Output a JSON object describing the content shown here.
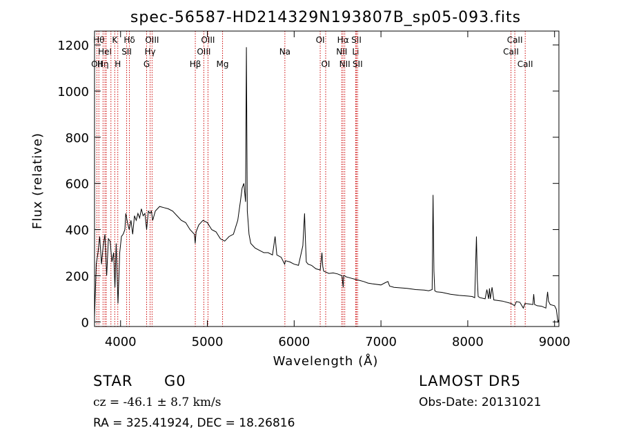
{
  "chart_data": {
    "type": "line",
    "title": "spec-56587-HD214329N193807B_sp05-093.fits",
    "xlabel": "Wavelength (Å)",
    "ylabel": "Flux (relative)",
    "xlim": [
      3700,
      9050
    ],
    "ylim": [
      -20,
      1260
    ],
    "x_ticks": [
      4000,
      5000,
      6000,
      7000,
      8000,
      9000
    ],
    "y_ticks": [
      0,
      200,
      400,
      600,
      800,
      1000,
      1200
    ],
    "grid": false,
    "series": [
      {
        "x": [
          3700,
          3720,
          3740,
          3760,
          3780,
          3800,
          3820,
          3840,
          3860,
          3880,
          3900,
          3920,
          3935,
          3950,
          3970,
          3990,
          4010,
          4030,
          4050,
          4060,
          4080,
          4100,
          4120,
          4140,
          4160,
          4180,
          4200,
          4220,
          4240,
          4260,
          4280,
          4300,
          4320,
          4340,
          4355,
          4370,
          4400,
          4450,
          4500,
          4550,
          4600,
          4650,
          4700,
          4750,
          4800,
          4850,
          4860,
          4870,
          4900,
          4950,
          5000,
          5050,
          5100,
          5150,
          5200,
          5250,
          5300,
          5350,
          5380,
          5400,
          5420,
          5440,
          5450,
          5460,
          5470,
          5480,
          5500,
          5550,
          5600,
          5650,
          5700,
          5750,
          5780,
          5800,
          5850,
          5890,
          5900,
          5950,
          6000,
          6050,
          6100,
          6120,
          6130,
          6140,
          6160,
          6200,
          6250,
          6300,
          6320,
          6330,
          6340,
          6400,
          6450,
          6500,
          6550,
          6560,
          6565,
          6570,
          6580,
          6600,
          6650,
          6700,
          6750,
          6800,
          6850,
          6900,
          7000,
          7050,
          7080,
          7100,
          7150,
          7200,
          7300,
          7400,
          7500,
          7550,
          7590,
          7600,
          7610,
          7620,
          7640,
          7700,
          7800,
          7900,
          8000,
          8050,
          8080,
          8100,
          8110,
          8120,
          8140,
          8200,
          8220,
          8240,
          8250,
          8260,
          8280,
          8300,
          8400,
          8500,
          8540,
          8560,
          8600,
          8640,
          8660,
          8700,
          8750,
          8760,
          8770,
          8800,
          8850,
          8900,
          8920,
          8930,
          8950,
          9000,
          9020,
          9040,
          9050
        ],
        "y": [
          20,
          250,
          300,
          370,
          250,
          330,
          380,
          200,
          360,
          350,
          260,
          300,
          150,
          340,
          80,
          300,
          370,
          380,
          400,
          470,
          430,
          400,
          440,
          380,
          460,
          440,
          470,
          450,
          490,
          460,
          470,
          400,
          480,
          470,
          480,
          440,
          480,
          500,
          495,
          490,
          480,
          460,
          440,
          430,
          400,
          380,
          340,
          390,
          420,
          440,
          430,
          400,
          390,
          360,
          350,
          370,
          380,
          440,
          520,
          580,
          600,
          520,
          1190,
          480,
          430,
          380,
          340,
          320,
          310,
          300,
          300,
          290,
          370,
          290,
          280,
          250,
          265,
          260,
          250,
          245,
          330,
          470,
          350,
          260,
          250,
          245,
          230,
          225,
          300,
          240,
          220,
          210,
          212,
          208,
          200,
          165,
          150,
          200,
          200,
          195,
          190,
          185,
          180,
          175,
          168,
          165,
          160,
          170,
          175,
          155,
          150,
          148,
          145,
          140,
          138,
          135,
          140,
          550,
          220,
          135,
          130,
          128,
          120,
          115,
          112,
          110,
          105,
          370,
          180,
          110,
          105,
          100,
          140,
          100,
          145,
          100,
          150,
          95,
          90,
          80,
          70,
          88,
          85,
          60,
          80,
          78,
          75,
          120,
          75,
          70,
          68,
          60,
          130,
          90,
          75,
          70,
          55,
          0,
          10
        ]
      }
    ],
    "line_markers": [
      {
        "wl": 3727,
        "label": "OII",
        "row": 2
      },
      {
        "wl": 3750,
        "label": "Hθ",
        "row": 0
      },
      {
        "wl": 3798,
        "label": "Hη",
        "row": 2
      },
      {
        "wl": 3820,
        "label": "HeI",
        "row": 1
      },
      {
        "wl": 3835,
        "label": "",
        "row": 0
      },
      {
        "wl": 3889,
        "label": "",
        "row": 0
      },
      {
        "wl": 3933,
        "label": "K",
        "row": 0
      },
      {
        "wl": 3968,
        "label": "H",
        "row": 2
      },
      {
        "wl": 4070,
        "label": "SII",
        "row": 1
      },
      {
        "wl": 4102,
        "label": "Hδ",
        "row": 0
      },
      {
        "wl": 4300,
        "label": "G",
        "row": 2
      },
      {
        "wl": 4340,
        "label": "Hγ",
        "row": 1
      },
      {
        "wl": 4363,
        "label": "OIII",
        "row": 0
      },
      {
        "wl": 4861,
        "label": "Hβ",
        "row": 2
      },
      {
        "wl": 4959,
        "label": "OIII",
        "row": 1
      },
      {
        "wl": 5007,
        "label": "OIII",
        "row": 0
      },
      {
        "wl": 5175,
        "label": "Mg",
        "row": 2
      },
      {
        "wl": 5893,
        "label": "Na",
        "row": 1
      },
      {
        "wl": 6300,
        "label": "OI",
        "row": 0
      },
      {
        "wl": 6363,
        "label": "OI",
        "row": 2
      },
      {
        "wl": 6548,
        "label": "NII",
        "row": 1
      },
      {
        "wl": 6563,
        "label": "Hα",
        "row": 0
      },
      {
        "wl": 6583,
        "label": "NII",
        "row": 2
      },
      {
        "wl": 6708,
        "label": "Li",
        "row": 1
      },
      {
        "wl": 6717,
        "label": "SII",
        "row": 0
      },
      {
        "wl": 6731,
        "label": "SII",
        "row": 2
      },
      {
        "wl": 8498,
        "label": "CaII",
        "row": 1
      },
      {
        "wl": 8542,
        "label": "CaII",
        "row": 0
      },
      {
        "wl": 8662,
        "label": "CaII",
        "row": 2
      }
    ]
  },
  "info": {
    "obj_class": "STAR",
    "subclass": "G0",
    "survey": "LAMOST DR5",
    "cz": "cz = -46.1 ± 8.7 km/s",
    "obs_date": "Obs-Date: 20131021",
    "coords": "RA = 325.41924, DEC =  18.26816"
  },
  "colors": {
    "spectrum": "#000000",
    "marker_lines": "#cc0000"
  }
}
